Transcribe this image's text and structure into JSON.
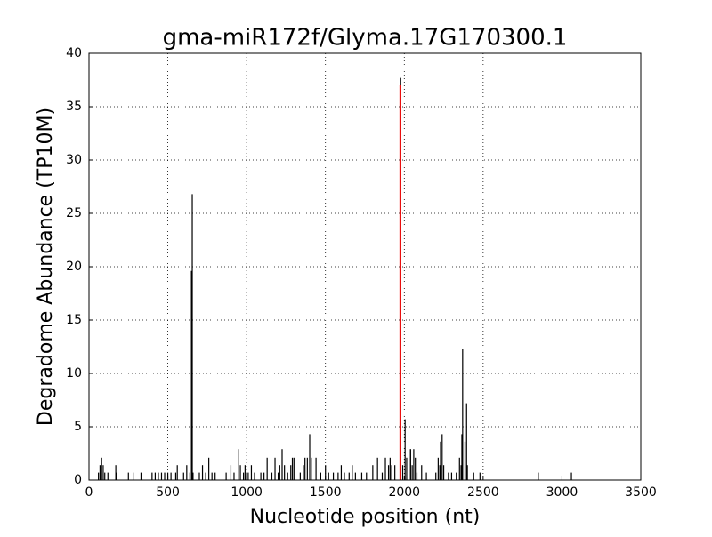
{
  "chart_data": {
    "type": "vlines",
    "title": "gma-miR172f/Glyma.17G170300.1",
    "xlabel": "Nucleotide position (nt)",
    "ylabel": "Degradome Abundance (TP10M)",
    "xlim": [
      0,
      3500
    ],
    "xticks": [
      0,
      500,
      1000,
      1500,
      2000,
      2500,
      3000,
      3500
    ],
    "ylim": [
      0,
      40
    ],
    "yticks": [
      0,
      5,
      10,
      15,
      20,
      25,
      30,
      35,
      40
    ],
    "grid": true,
    "series": [
      {
        "color": "#000000",
        "x": [
          60,
          70,
          80,
          90,
          100,
          120,
          170,
          175,
          250,
          280,
          330,
          400,
          420,
          440,
          460,
          480,
          500,
          520,
          550,
          560,
          600,
          620,
          640,
          650,
          655,
          660,
          700,
          720,
          740,
          760,
          780,
          800,
          870,
          900,
          920,
          950,
          960,
          980,
          990,
          1000,
          1010,
          1030,
          1050,
          1090,
          1110,
          1130,
          1160,
          1180,
          1200,
          1210,
          1225,
          1240,
          1260,
          1280,
          1290,
          1300,
          1340,
          1360,
          1370,
          1385,
          1400,
          1410,
          1440,
          1470,
          1500,
          1520,
          1550,
          1580,
          1600,
          1620,
          1650,
          1670,
          1690,
          1730,
          1760,
          1800,
          1830,
          1860,
          1880,
          1900,
          1910,
          1920,
          1940,
          1977,
          1990,
          2005,
          2015,
          2030,
          2040,
          2050,
          2060,
          2070,
          2080,
          2110,
          2140,
          2200,
          2215,
          2225,
          2230,
          2240,
          2250,
          2280,
          2300,
          2330,
          2350,
          2360,
          2365,
          2370,
          2385,
          2395,
          2400,
          2440,
          2480,
          2850,
          3060
        ],
        "values": [
          0.7,
          1.4,
          2.1,
          1.4,
          0.7,
          0.7,
          1.4,
          0.7,
          0.7,
          0.7,
          0.7,
          0.7,
          0.7,
          0.7,
          0.7,
          0.7,
          0.7,
          0.7,
          0.7,
          1.4,
          0.7,
          1.4,
          0.7,
          19.6,
          26.8,
          0.7,
          0.7,
          1.4,
          0.7,
          2.1,
          0.7,
          0.7,
          0.7,
          1.4,
          0.7,
          2.9,
          1.4,
          0.7,
          1.4,
          0.7,
          0.7,
          1.4,
          0.7,
          0.7,
          0.7,
          2.1,
          0.7,
          2.1,
          0.7,
          1.4,
          2.9,
          1.4,
          0.7,
          1.4,
          2.1,
          2.1,
          0.7,
          1.4,
          2.1,
          2.1,
          4.3,
          2.1,
          2.1,
          0.7,
          1.4,
          0.7,
          0.7,
          0.7,
          1.4,
          0.7,
          0.7,
          1.4,
          0.7,
          0.7,
          0.7,
          1.4,
          2.1,
          0.7,
          2.1,
          1.4,
          2.1,
          1.4,
          1.4,
          37.7,
          1.4,
          5.7,
          2.1,
          2.9,
          2.9,
          1.4,
          2.9,
          2.1,
          0.7,
          1.4,
          0.7,
          0.7,
          2.1,
          1.4,
          3.6,
          4.3,
          1.4,
          0.7,
          0.7,
          0.7,
          2.1,
          1.4,
          4.3,
          12.3,
          3.6,
          7.2,
          1.4,
          0.7,
          0.7,
          0.7,
          0.7
        ]
      },
      {
        "color": "#ff0000",
        "x": [
          1975
        ],
        "values": [
          37.0
        ]
      }
    ]
  }
}
